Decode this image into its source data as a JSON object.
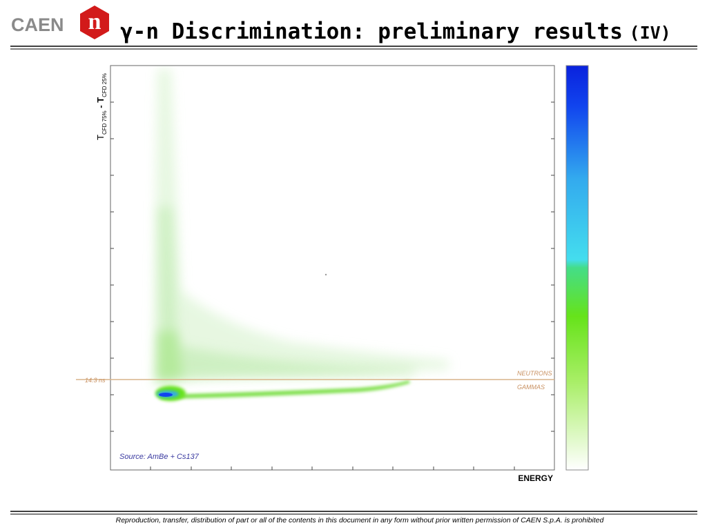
{
  "header": {
    "logo": "CAEN",
    "logo_mark": "n",
    "title": "γ-n Discrimination: preliminary results",
    "title_suffix": "(IV)"
  },
  "plot": {
    "y_label_main": "T",
    "y_label_sub_1": "CFD 75%",
    "y_label_dash": " - T",
    "y_label_sub_2": "CFD 25%",
    "x_label": "ENERGY",
    "threshold_label": "14.3 ns",
    "upper_region_label": "NEUTRONS",
    "lower_region_label": "GAMMAS",
    "source_note": "Source: AmBe + Cs137"
  },
  "footer": {
    "text": "Reproduction, transfer, distribution of part or all of the contents in this document in any form without prior written permission of  CAEN S.p.A. is prohibited"
  }
}
